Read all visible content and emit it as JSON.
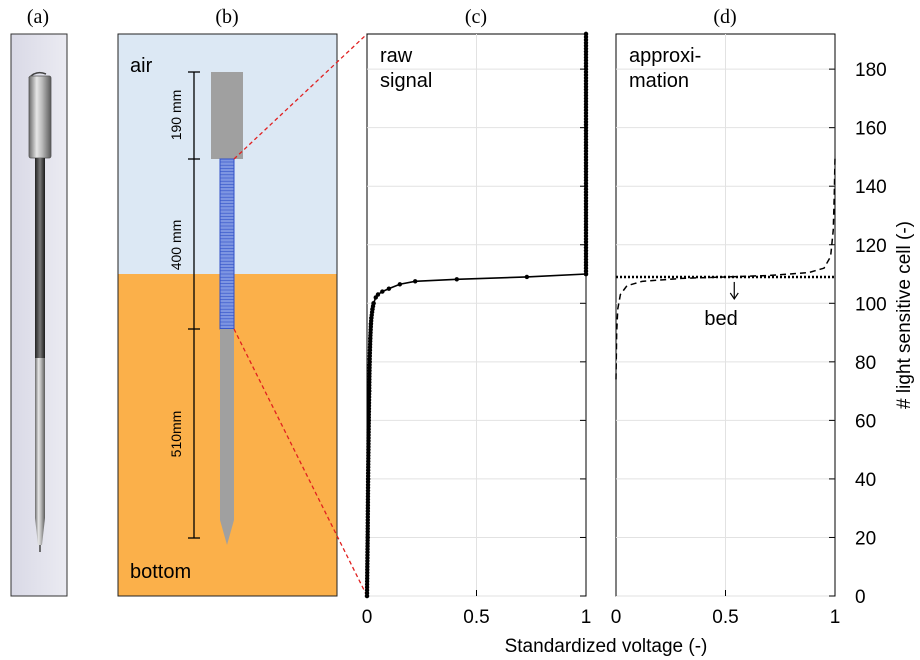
{
  "panels": {
    "a": "(a)",
    "b": "(b)",
    "c": "(c)",
    "d": "(d)"
  },
  "diagram_b": {
    "air_label": "air",
    "bottom_label": "bottom",
    "dim_top": "190 mm",
    "dim_mid": "400 mm",
    "dim_bottom": "510mm",
    "colors": {
      "air": "#dce8f4",
      "bottom": "#fbb04a",
      "probe": "#a0a0a0",
      "sensor": "#4a6ed8"
    }
  },
  "chart_data": [
    {
      "type": "line",
      "panel": "(c)",
      "annotation": "raw\nsignal",
      "annotation_lines": [
        "raw",
        "signal"
      ],
      "xlabel": "Standardized voltage (-)",
      "ylabel": "# light sensitive cell (-)",
      "xlim": [
        0,
        1
      ],
      "ylim": [
        0,
        192
      ],
      "xticks": [
        "0",
        "0.5",
        "1"
      ],
      "series": [
        {
          "style": "solid-with-markers",
          "x": [
            0.0,
            0.003,
            0.005,
            0.008,
            0.01,
            0.012,
            0.015,
            0.018,
            0.02,
            0.025,
            0.03,
            0.04,
            0.05,
            0.07,
            0.1,
            0.15,
            0.22,
            0.41,
            0.73,
            1.0,
            1.0
          ],
          "y": [
            0,
            20,
            40,
            60,
            70,
            80,
            88,
            93,
            95,
            98,
            100,
            102,
            103,
            104,
            105,
            106.5,
            107.5,
            108.2,
            109,
            110,
            192
          ]
        }
      ]
    },
    {
      "type": "line",
      "panel": "(d)",
      "annotation_lines": [
        "approxi-",
        "mation"
      ],
      "bed_label": "bed",
      "xlim": [
        0,
        1
      ],
      "ylim": [
        0,
        192
      ],
      "xticks": [
        "0",
        "0.5",
        "1"
      ],
      "yticks": [
        "0",
        "20",
        "40",
        "60",
        "80",
        "100",
        "120",
        "140",
        "160",
        "180"
      ],
      "bed_level": 109,
      "series": [
        {
          "style": "dashed",
          "x": [
            0.0,
            0.003,
            0.008,
            0.02,
            0.05,
            0.12,
            0.3,
            0.5,
            0.7,
            0.88,
            0.95,
            0.98,
            0.992,
            0.997,
            1.0
          ],
          "y": [
            74,
            90,
            98,
            103,
            106,
            107.5,
            108.5,
            109,
            109.5,
            110.5,
            112,
            116,
            125,
            138,
            150
          ]
        }
      ]
    }
  ]
}
